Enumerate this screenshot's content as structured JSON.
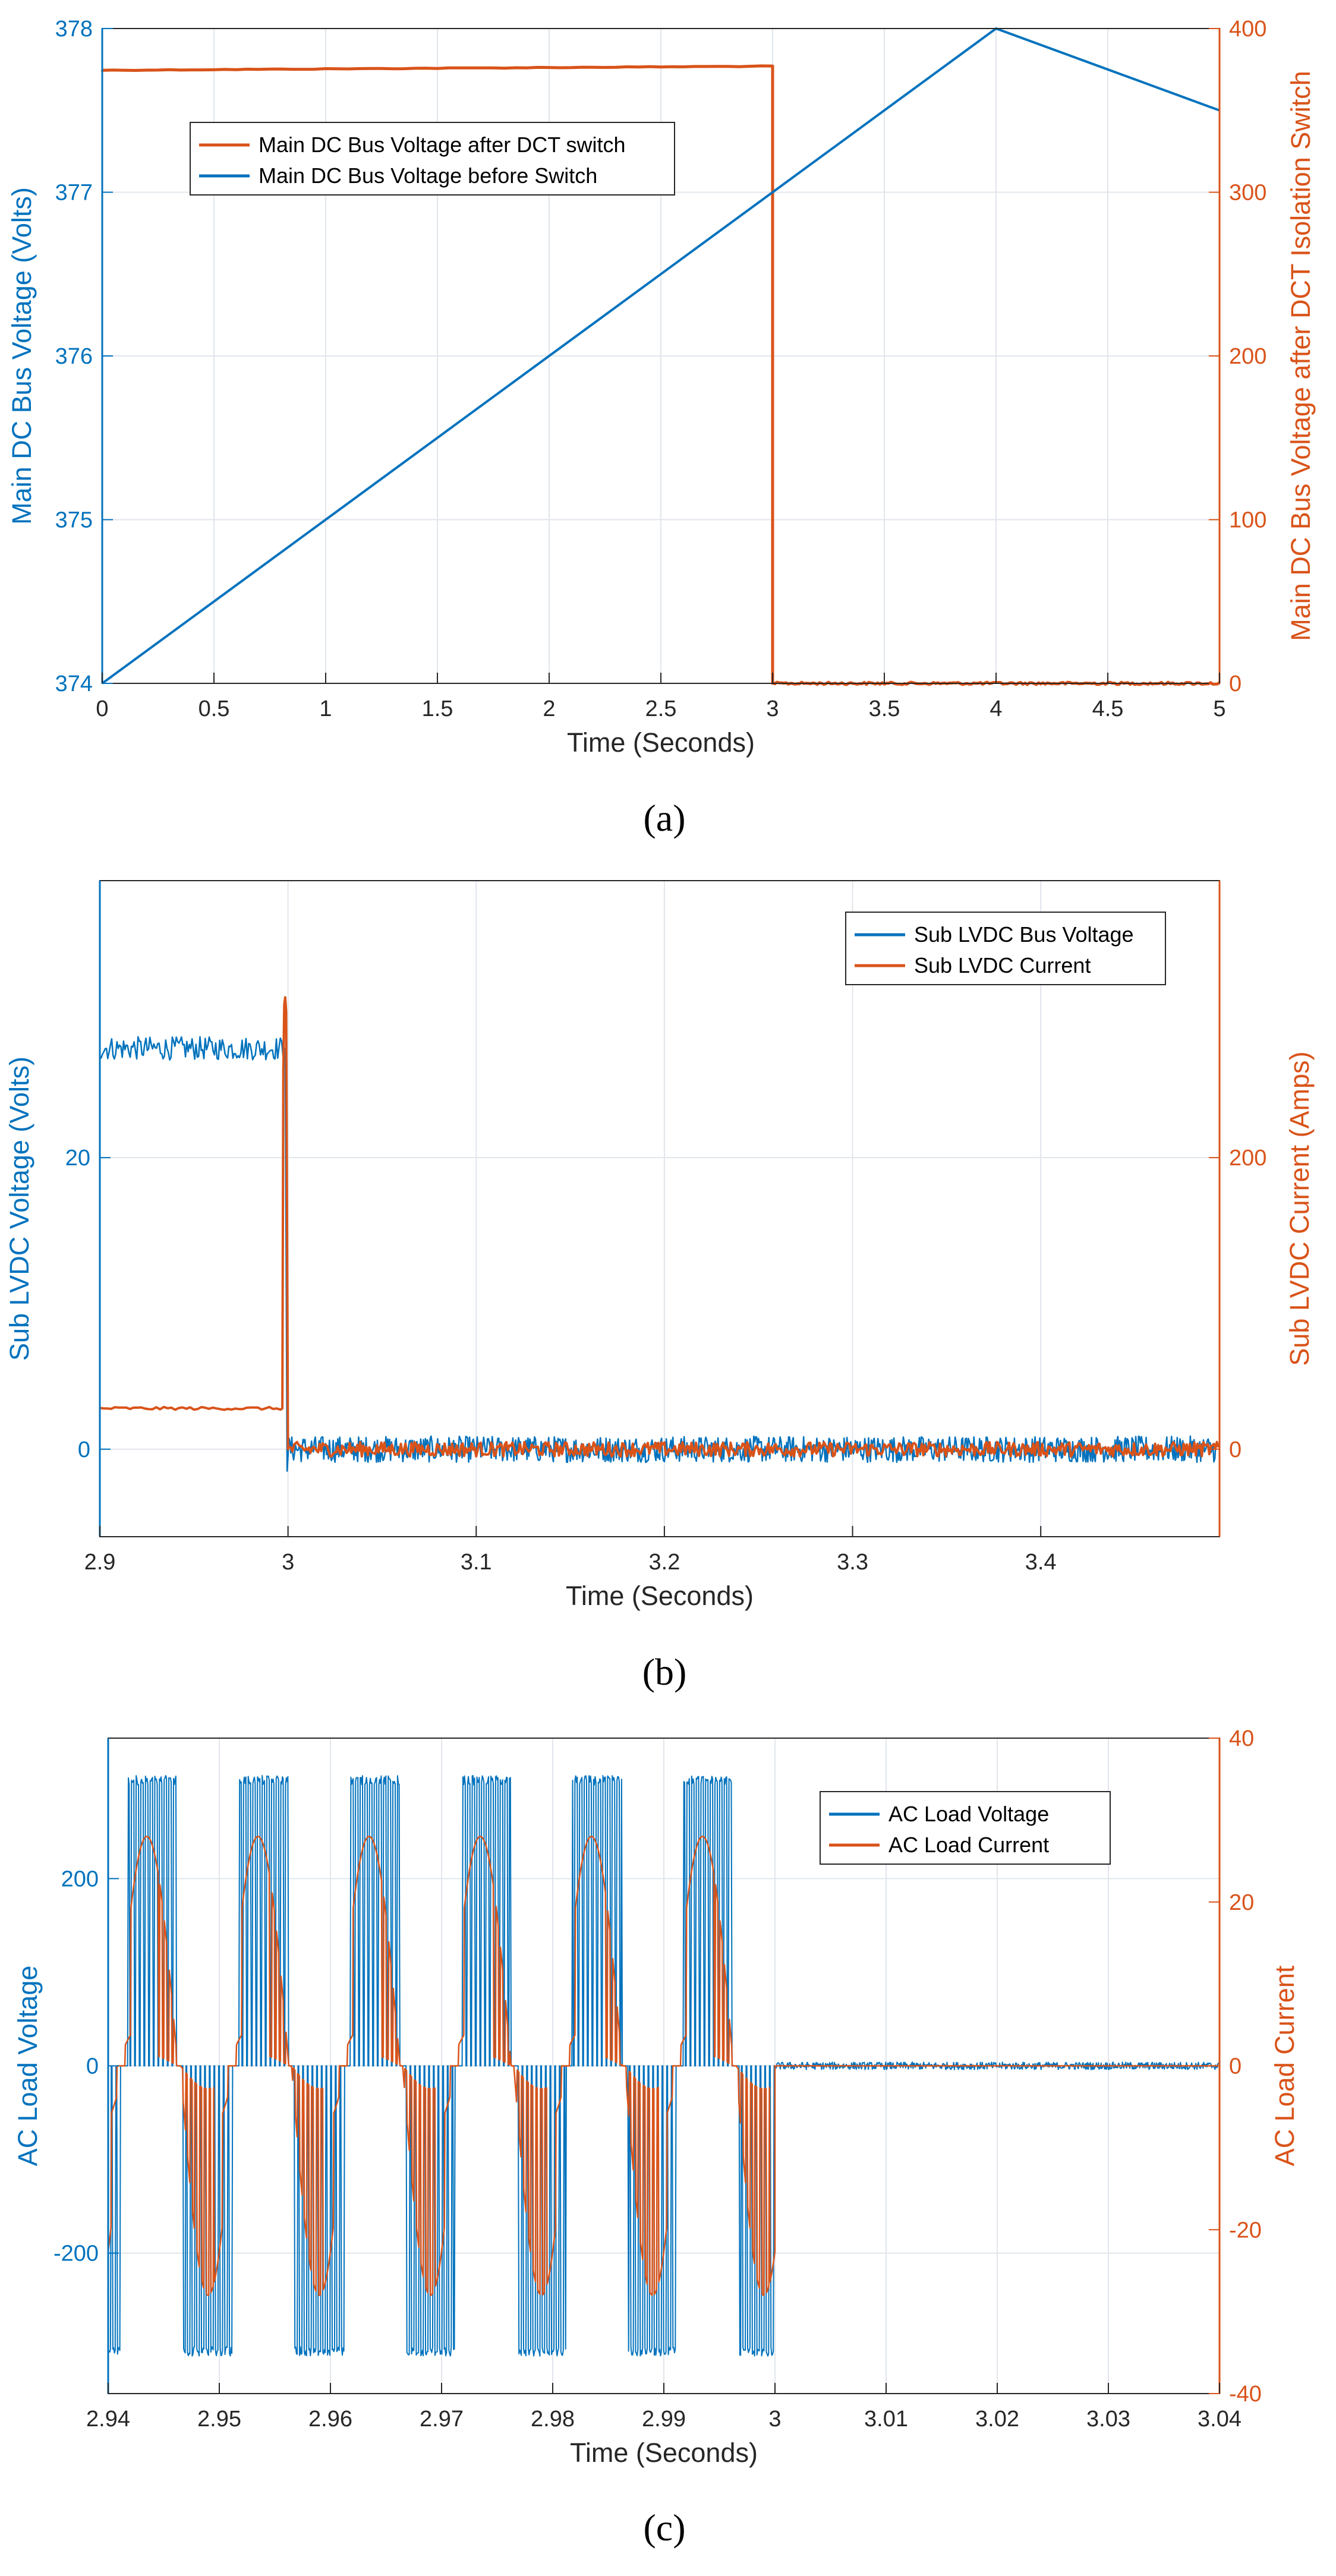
{
  "colors": {
    "blue": "#0072BD",
    "orange": "#D95319",
    "grid": "#E1E6EC",
    "axes": "#262626"
  },
  "chart_data": [
    {
      "id": "a",
      "type": "line",
      "caption": "(a)",
      "xlabel": "Time (Seconds)",
      "ylabel_left": "Main DC Bus Voltage (Volts)",
      "ylabel_right": "Main DC Bus Voltage after DCT Isolation Switch",
      "xlim": [
        0,
        5
      ],
      "ylim_left": [
        374,
        378
      ],
      "ylim_right": [
        0,
        400
      ],
      "xticks": [
        0,
        0.5,
        1,
        1.5,
        2,
        2.5,
        3,
        3.5,
        4,
        4.5,
        5
      ],
      "xticklabels": [
        "0",
        "0.5",
        "1",
        "1.5",
        "2",
        "2.5",
        "3",
        "3.5",
        "4",
        "4.5",
        "5"
      ],
      "yticks_left": [
        374,
        375,
        376,
        377,
        378
      ],
      "yticklabels_left": [
        "374",
        "375",
        "376",
        "377",
        "378"
      ],
      "yticks_right": [
        0,
        100,
        200,
        300,
        400
      ],
      "yticklabels_right": [
        "0",
        "100",
        "200",
        "300",
        "400"
      ],
      "legend": [
        {
          "label": "Main DC Bus Voltage after DCT switch",
          "color": "#D95319"
        },
        {
          "label": "Main DC Bus Voltage before Switch",
          "color": "#0072BD"
        }
      ],
      "series": [
        {
          "name": "Main DC Bus Voltage before Switch",
          "axis": "left",
          "x": [
            0,
            4,
            5
          ],
          "y": [
            374,
            378,
            377.5
          ]
        },
        {
          "name": "Main DC Bus Voltage after DCT switch",
          "axis": "right",
          "x": [
            0,
            3,
            3,
            5
          ],
          "y": [
            374,
            377,
            0,
            0
          ],
          "noise": 1.5
        }
      ]
    },
    {
      "id": "b",
      "type": "line",
      "caption": "(b)",
      "xlabel": "Time (Seconds)",
      "ylabel_left": "Sub LVDC Voltage (Volts)",
      "ylabel_right": "Sub LVDC Current (Amps)",
      "xlim": [
        2.9,
        3.495
      ],
      "ylim_left": [
        -6,
        39
      ],
      "ylim_right": [
        -60,
        390
      ],
      "xticks": [
        2.9,
        3.0,
        3.1,
        3.2,
        3.3,
        3.4
      ],
      "xticklabels": [
        "2.9",
        "3",
        "3.1",
        "3.2",
        "3.3",
        "3.4"
      ],
      "yticks_left": [
        0,
        20
      ],
      "yticklabels_left": [
        "0",
        "20"
      ],
      "yticks_right": [
        0,
        200
      ],
      "yticklabels_right": [
        "0",
        "200"
      ],
      "legend": [
        {
          "label": "Sub LVDC Bus Voltage",
          "color": "#0072BD"
        },
        {
          "label": "Sub LVDC Current",
          "color": "#D95319"
        }
      ],
      "series": [
        {
          "name": "Sub LVDC Bus Voltage",
          "axis": "left",
          "x": [
            2.9,
            2.999,
            3.0,
            3.495
          ],
          "y": [
            27.5,
            27.5,
            0,
            0
          ],
          "noise": 0.7
        },
        {
          "name": "Sub LVDC Current",
          "axis": "right",
          "x": [
            2.9,
            2.997,
            2.998,
            2.9985,
            2.9995,
            3.0,
            3.495
          ],
          "y": [
            28,
            28,
            200,
            310,
            300,
            0,
            0
          ],
          "noise": 3
        }
      ]
    },
    {
      "id": "c",
      "type": "line",
      "caption": "(c)",
      "xlabel": "Time (Seconds)",
      "ylabel_left": "AC Load Voltage",
      "ylabel_right": "AC Load Current",
      "xlim": [
        2.94,
        3.04
      ],
      "ylim_left": [
        -350,
        350
      ],
      "ylim_right": [
        -40,
        40
      ],
      "xticks": [
        2.94,
        2.95,
        2.96,
        2.97,
        2.98,
        2.99,
        3.0,
        3.01,
        3.02,
        3.03,
        3.04
      ],
      "xticklabels": [
        "2.94",
        "2.95",
        "2.96",
        "2.97",
        "2.98",
        "2.99",
        "3",
        "3.01",
        "3.02",
        "3.03",
        "3.04"
      ],
      "yticks_left": [
        -200,
        0,
        200
      ],
      "yticklabels_left": [
        "-200",
        "0",
        "200"
      ],
      "yticks_right": [
        -40,
        -20,
        0,
        20,
        40
      ],
      "yticklabels_right": [
        "-40",
        "-20",
        "0",
        "20",
        "40"
      ],
      "legend": [
        {
          "label": "AC Load Voltage",
          "color": "#0072BD"
        },
        {
          "label": "AC Load Current",
          "color": "#D95319"
        }
      ],
      "series": [
        {
          "name": "AC Load Voltage",
          "axis": "left",
          "type": "pwm",
          "amplitude": 305,
          "frequency_hz": 100,
          "switch_off_time": 3.0
        },
        {
          "name": "AC Load Current",
          "axis": "right",
          "type": "rectified-pulse",
          "amplitude": 28,
          "frequency_hz": 100,
          "switch_off_time": 3.0
        }
      ]
    }
  ]
}
